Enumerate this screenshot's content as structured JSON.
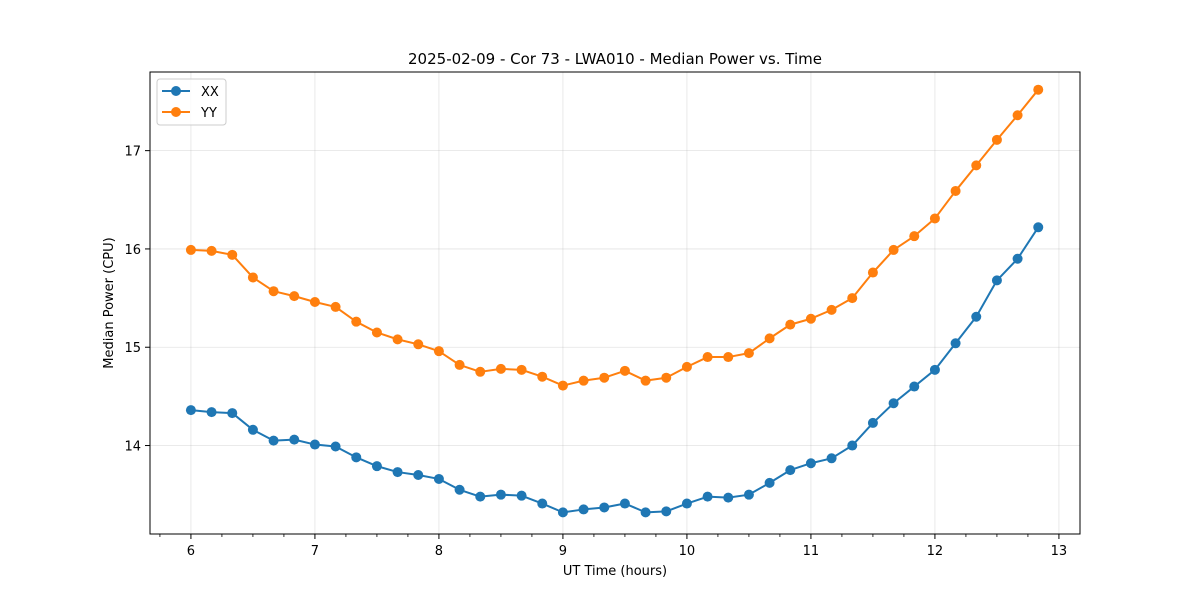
{
  "chart_data": {
    "type": "line",
    "title": "2025-02-09 - Cor 73 - LWA010 - Median Power vs. Time",
    "xlabel": "UT Time (hours)",
    "ylabel": "Median Power (CPU)",
    "xlim": [
      5.67,
      13.17
    ],
    "ylim": [
      13.1,
      17.8
    ],
    "xticks": [
      6,
      7,
      8,
      9,
      10,
      11,
      12,
      13
    ],
    "xtick_labels": [
      "6",
      "7",
      "8",
      "9",
      "10",
      "11",
      "12",
      "13"
    ],
    "yticks": [
      14,
      15,
      16,
      17
    ],
    "ytick_labels": [
      "14",
      "15",
      "16",
      "17"
    ],
    "x_minor_step": 0.25,
    "grid": true,
    "legend_position": "top-left",
    "x": [
      6.0,
      6.1667,
      6.3333,
      6.5,
      6.6667,
      6.8333,
      7.0,
      7.1667,
      7.3333,
      7.5,
      7.6667,
      7.8333,
      8.0,
      8.1667,
      8.3333,
      8.5,
      8.6667,
      8.8333,
      9.0,
      9.1667,
      9.3333,
      9.5,
      9.6667,
      9.8333,
      10.0,
      10.1667,
      10.3333,
      10.5,
      10.6667,
      10.8333,
      11.0,
      11.1667,
      11.3333,
      11.5,
      11.6667,
      11.8333,
      12.0,
      12.1667,
      12.3333,
      12.5,
      12.6667,
      12.8333
    ],
    "series": [
      {
        "name": "XX",
        "color": "#1f77b4",
        "values": [
          14.36,
          14.34,
          14.33,
          14.16,
          14.05,
          14.06,
          14.01,
          13.99,
          13.88,
          13.79,
          13.73,
          13.7,
          13.66,
          13.55,
          13.48,
          13.5,
          13.49,
          13.41,
          13.32,
          13.35,
          13.37,
          13.41,
          13.32,
          13.33,
          13.41,
          13.48,
          13.47,
          13.5,
          13.62,
          13.75,
          13.82,
          13.87,
          14.0,
          14.23,
          14.43,
          14.6,
          14.77,
          15.04,
          15.31,
          15.68,
          15.9,
          16.22
        ]
      },
      {
        "name": "YY",
        "color": "#ff7f0e",
        "values": [
          15.99,
          15.98,
          15.94,
          15.71,
          15.57,
          15.52,
          15.46,
          15.41,
          15.26,
          15.15,
          15.08,
          15.03,
          14.96,
          14.82,
          14.75,
          14.78,
          14.77,
          14.7,
          14.61,
          14.66,
          14.69,
          14.76,
          14.66,
          14.69,
          14.8,
          14.9,
          14.9,
          14.94,
          15.09,
          15.23,
          15.29,
          15.38,
          15.5,
          15.76,
          15.99,
          16.13,
          16.31,
          16.59,
          16.85,
          17.11,
          17.36,
          17.62
        ]
      }
    ]
  }
}
